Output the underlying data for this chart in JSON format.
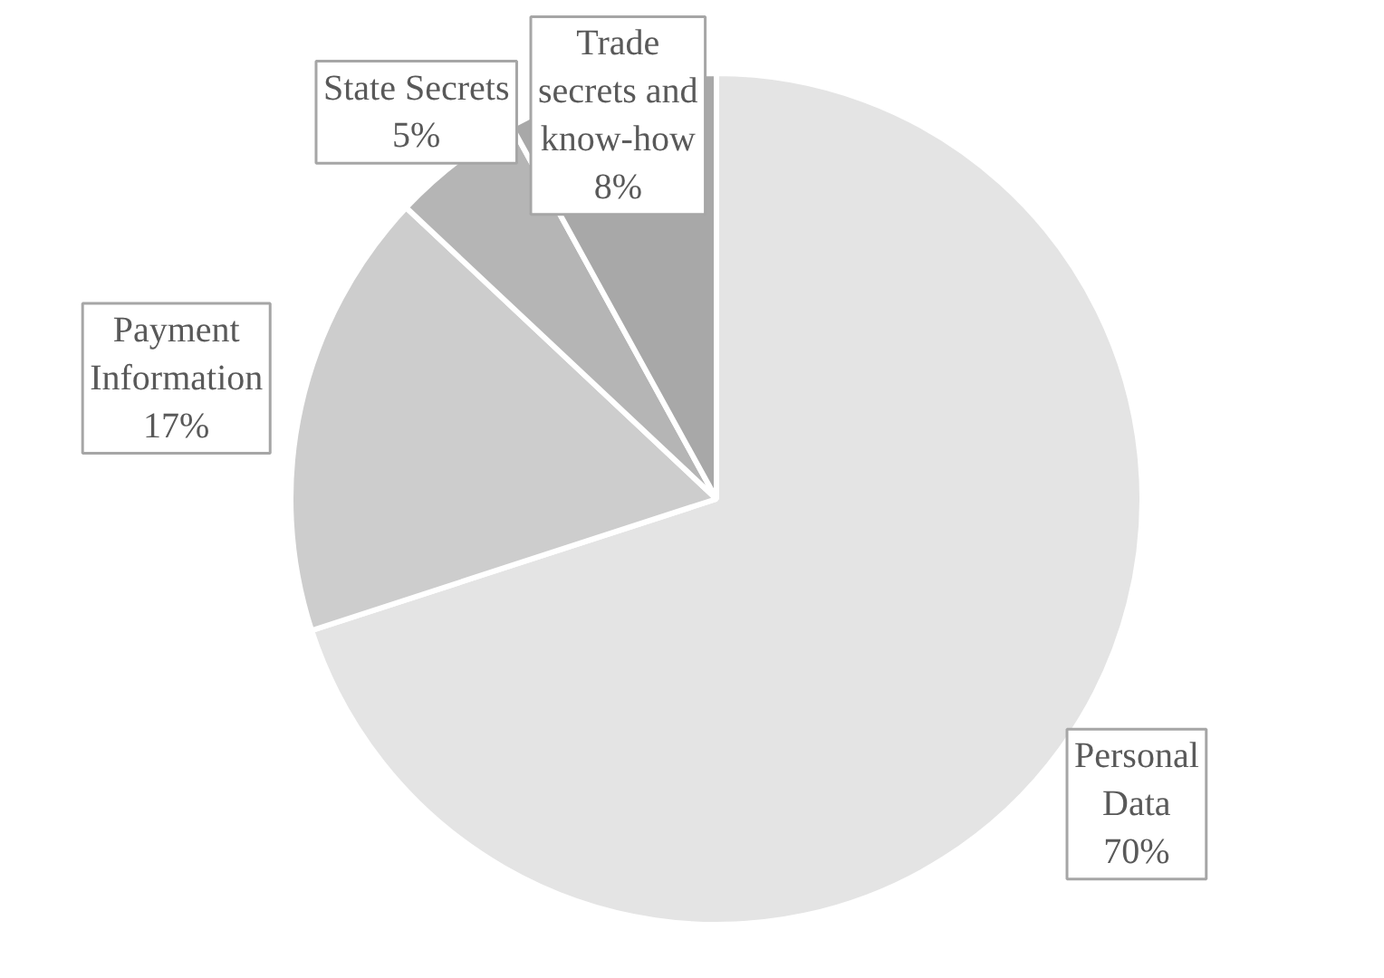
{
  "chart_data": {
    "type": "pie",
    "categories": [
      "Personal Data",
      "Payment Information",
      "State Secrets",
      "Trade secrets and know-how"
    ],
    "values": [
      70,
      17,
      5,
      8
    ],
    "colors": [
      "#e4e4e4",
      "#cdcdcd",
      "#b5b5b5",
      "#a8a8a8"
    ],
    "value_labels": [
      "70%",
      "17%",
      "5%",
      "8%"
    ]
  }
}
